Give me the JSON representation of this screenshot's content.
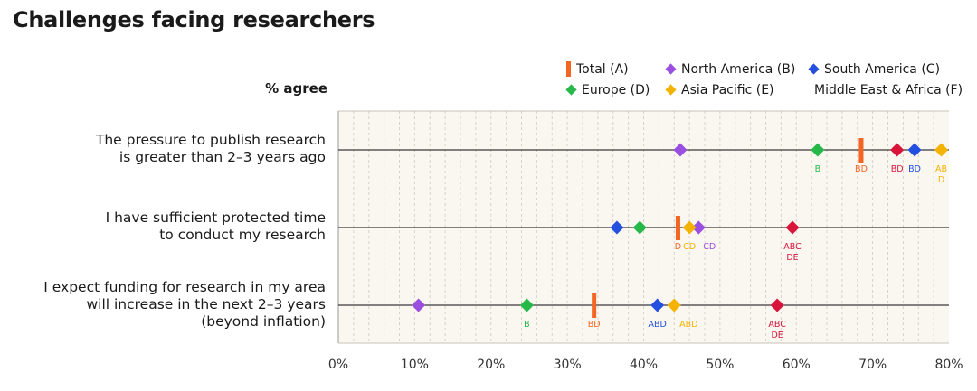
{
  "chart_data": {
    "type": "scatter",
    "title": "Challenges facing researchers",
    "xlabel": "% agree",
    "xlim": [
      0,
      80
    ],
    "xticks": [
      0,
      10,
      20,
      30,
      40,
      50,
      60,
      70,
      80
    ],
    "xtick_labels": [
      "0%",
      "10%",
      "20%",
      "30%",
      "40%",
      "50%",
      "60%",
      "70%",
      "80%"
    ],
    "legend_position": "top-right",
    "series": [
      {
        "name": "Total (A)",
        "key": "total",
        "marker": "bar",
        "color": "#f26522"
      },
      {
        "name": "North America (B)",
        "key": "na",
        "marker": "diamond",
        "color": "#9b4fe0"
      },
      {
        "name": "South America (C)",
        "key": "sa",
        "marker": "diamond",
        "color": "#2450e0"
      },
      {
        "name": "Europe (D)",
        "key": "eu",
        "marker": "diamond",
        "color": "#27b84a"
      },
      {
        "name": "Asia Pacific (E)",
        "key": "ap",
        "marker": "diamond",
        "color": "#f5b301"
      },
      {
        "name": "Middle East & Africa (F)",
        "key": "mea",
        "marker": "diamond",
        "color": "#d8143a"
      }
    ],
    "categories": [
      {
        "label_lines": [
          "The pressure to publish research",
          "is greater than 2–3 years ago"
        ],
        "values": {
          "total": 68.5,
          "na": 44.8,
          "sa": 75.5,
          "eu": 62.8,
          "ap": 79.0,
          "mea": 73.2
        },
        "sig": {
          "total": [
            "BD"
          ],
          "eu": [
            "B"
          ],
          "sa": [
            "BD"
          ],
          "ap": [
            "AB",
            "D"
          ],
          "mea": [
            "BD"
          ]
        }
      },
      {
        "label_lines": [
          "I have sufficient protected time",
          "to conduct my research"
        ],
        "values": {
          "total": 44.5,
          "na": 47.2,
          "sa": 36.5,
          "eu": 39.5,
          "ap": 46.0,
          "mea": 59.5
        },
        "sig": {
          "total": [
            "D"
          ],
          "ap": [
            "CD"
          ],
          "na": [
            "CD"
          ],
          "mea": [
            "ABC",
            "DE"
          ]
        }
      },
      {
        "label_lines": [
          "I expect funding for research in my area",
          "will increase in the next 2–3 years",
          "(beyond inflation)"
        ],
        "values": {
          "total": 33.5,
          "na": 10.5,
          "sa": 41.8,
          "eu": 24.7,
          "ap": 44.0,
          "mea": 57.5
        },
        "sig": {
          "eu": [
            "B"
          ],
          "total": [
            "BD"
          ],
          "sa": [
            "ABD"
          ],
          "ap": [
            "ABD"
          ],
          "mea": [
            "ABC",
            "DE"
          ]
        }
      }
    ]
  }
}
